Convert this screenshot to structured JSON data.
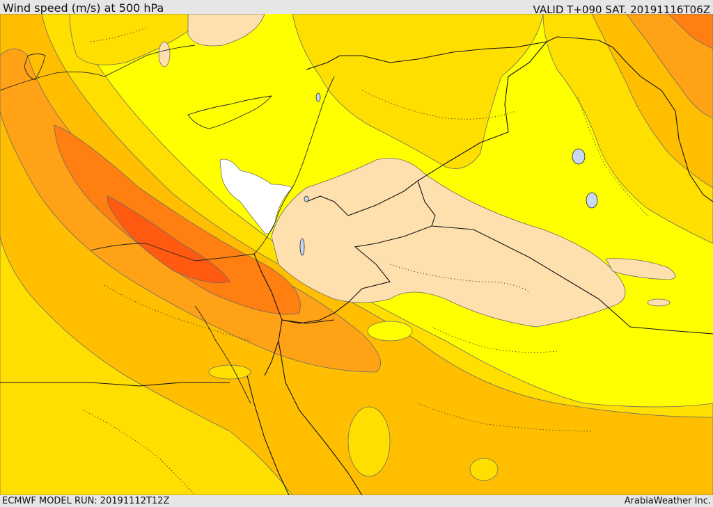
{
  "header": {
    "title": "Wind speed (m/s) at 500 hPa",
    "valid": "VALID T+090 SAT. 20191116T06Z"
  },
  "footer": {
    "model_run": "ECMWF MODEL RUN: 20191112T12Z",
    "credit": "ArabiaWeather Inc."
  },
  "map": {
    "field": "wind-speed",
    "colors": {
      "white": "#ffffff",
      "pale": "#fde0ad",
      "yellow": "#ffff00",
      "gold": "#ffdf00",
      "amber": "#ffbf00",
      "orange_light": "#ffa215",
      "orange": "#ff7f10",
      "red_orange": "#ff5a10"
    }
  }
}
